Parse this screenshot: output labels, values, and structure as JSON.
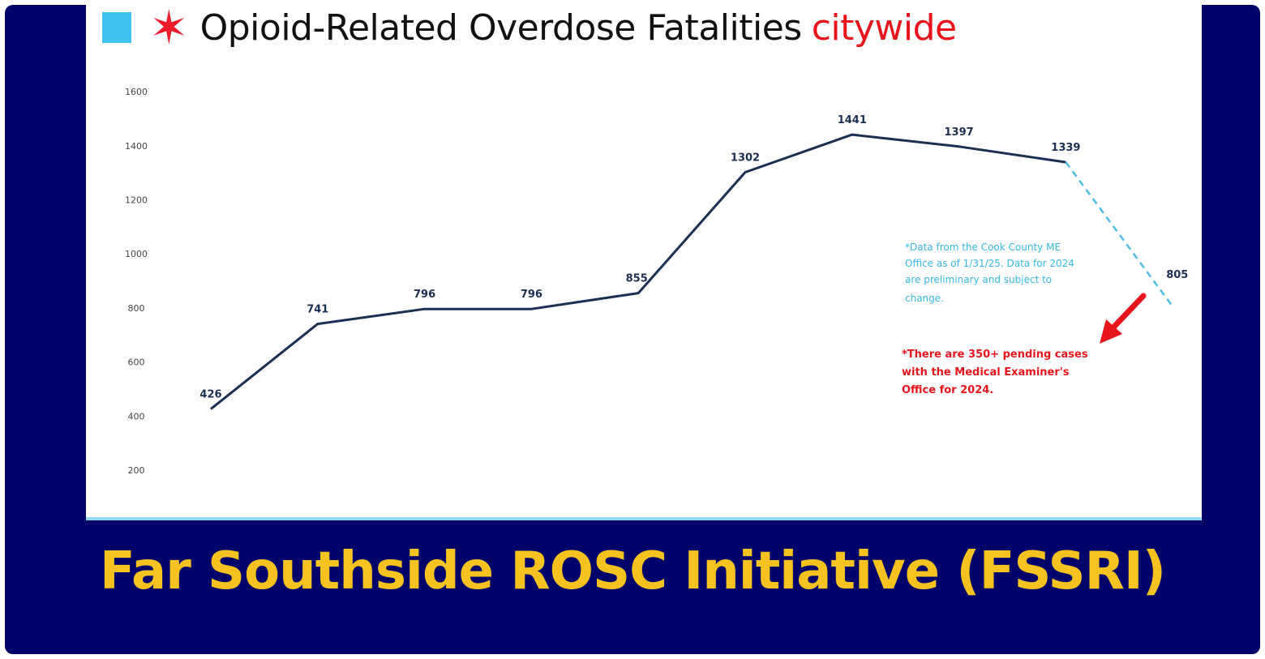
{
  "header": {
    "title_main": "Opioid-Related Overdose Fatalities",
    "title_highlight": "citywide",
    "star_glyph": "✶"
  },
  "banner": {
    "text": "Far Southside ROSC Initiative (FSSRI)"
  },
  "colors": {
    "background": "#01016a",
    "banner_text": "#f6c21f",
    "line": "#1a2f52",
    "projection_line": "#4fbbe7",
    "highlight": "#e8141c",
    "accent_square": "#3ec3ee"
  },
  "chart_data": {
    "type": "line",
    "title": "Opioid-Related Overdose Fatalities citywide",
    "xlabel": "",
    "ylabel": "",
    "ylim": [
      200,
      1600
    ],
    "yticks": [
      200,
      400,
      600,
      800,
      1000,
      1200,
      1400,
      1600
    ],
    "grid": false,
    "legend": "none",
    "series": [
      {
        "values": [
          426,
          741,
          796,
          796,
          855,
          1302,
          1441,
          1397,
          1339,
          805
        ],
        "projection_start_index": 8
      }
    ],
    "labels": [
      "426",
      "741",
      "796",
      "796",
      "855",
      "1302",
      "1441",
      "1397",
      "1339",
      "805"
    ],
    "annotations": {
      "blue_note_lines": [
        "*Data from the Cook County ME",
        "Office as of 1/31/25. Data for 2024",
        "are preliminary and subject to",
        "change."
      ],
      "red_note_lines": [
        "*There are 350+ pending cases",
        "with the Medical Examiner's",
        "Office for 2024."
      ]
    }
  }
}
